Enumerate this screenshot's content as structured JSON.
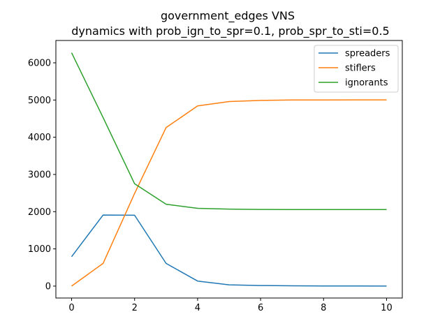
{
  "chart_data": {
    "type": "line",
    "title": "government_edges VNS",
    "subtitle": "dynamics with prob_ign_to_spr=0.1, prob_spr_to_sti=0.5",
    "xlabel": "",
    "ylabel": "",
    "xlim": [
      -0.5,
      10.5
    ],
    "ylim": [
      -320,
      6600
    ],
    "xticks": [
      0,
      2,
      4,
      6,
      8,
      10
    ],
    "yticks": [
      0,
      1000,
      2000,
      3000,
      4000,
      5000,
      6000
    ],
    "grid": false,
    "legend_position": "top-right",
    "x": [
      0,
      1,
      2,
      3,
      4,
      5,
      6,
      7,
      8,
      9,
      10
    ],
    "series": [
      {
        "name": "spreaders",
        "color": "#1f77b4",
        "values": [
          790,
          1910,
          1905,
          610,
          135,
          35,
          15,
          8,
          4,
          2,
          0
        ]
      },
      {
        "name": "stiflers",
        "color": "#ff7f0e",
        "values": [
          0,
          610,
          2490,
          4260,
          4840,
          4960,
          4990,
          5000,
          5003,
          5005,
          5005
        ]
      },
      {
        "name": "ignorants",
        "color": "#2ca02c",
        "values": [
          6270,
          4530,
          2750,
          2200,
          2090,
          2070,
          2060,
          2058,
          2058,
          2058,
          2058
        ]
      }
    ]
  }
}
